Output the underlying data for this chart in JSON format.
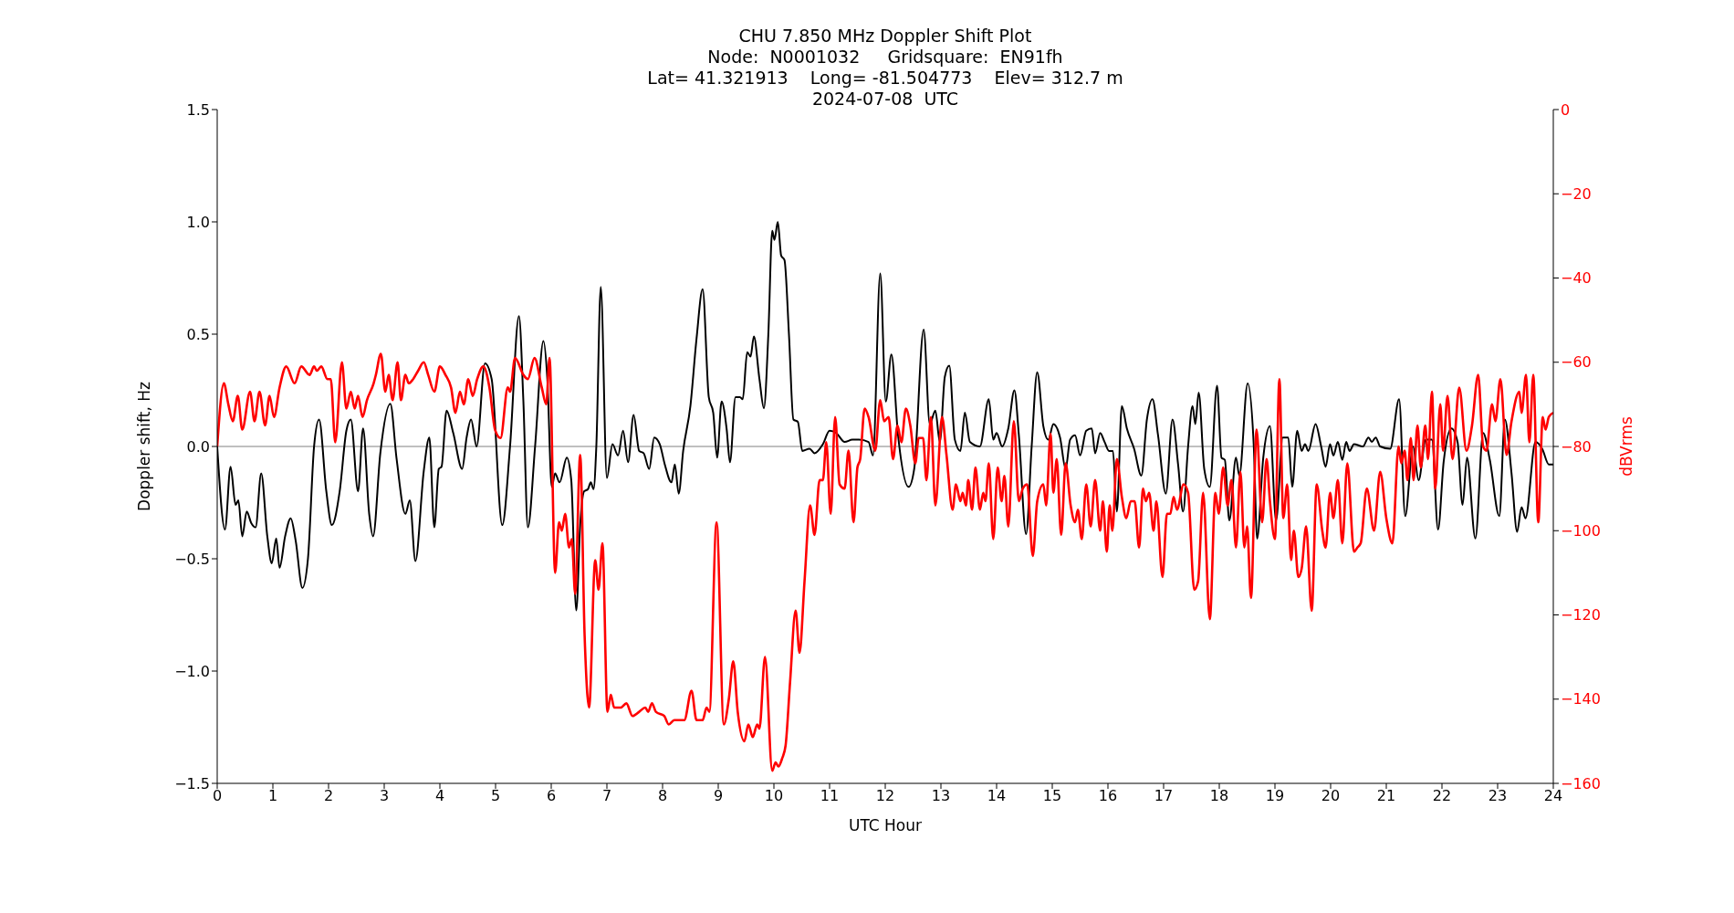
{
  "chart_data": {
    "type": "line",
    "title": "CHU 7.850 MHz Doppler Shift Plot",
    "subtitle": "Node:  N0001032     Gridsquare:  EN91fh\nLat= 41.321913    Long= -81.504773    Elev= 312.7 m\n2024-07-08  UTC",
    "xlabel": "UTC Hour",
    "ylabel": "Doppler shift, Hz",
    "y2label": "dBVrms",
    "xlim": [
      0,
      24
    ],
    "xticks": [
      0,
      1,
      2,
      3,
      4,
      5,
      6,
      7,
      8,
      9,
      10,
      11,
      12,
      13,
      14,
      15,
      16,
      17,
      18,
      19,
      20,
      21,
      22,
      23,
      24
    ],
    "ylim": [
      -1.5,
      1.5
    ],
    "yticks": [
      {
        "value": -1.5,
        "label": "−1.5"
      },
      {
        "value": -1.0,
        "label": "−1.0"
      },
      {
        "value": -0.5,
        "label": "−0.5"
      },
      {
        "value": 0,
        "label": "0.0"
      },
      {
        "value": 0.5,
        "label": "0.5"
      },
      {
        "value": 1.0,
        "label": "1.0"
      },
      {
        "value": 1.5,
        "label": "1.5"
      }
    ],
    "y2lim": [
      -160,
      0
    ],
    "y2ticks": [
      {
        "value": -160,
        "label": "−160"
      },
      {
        "value": -140,
        "label": "−140"
      },
      {
        "value": -120,
        "label": "−120"
      },
      {
        "value": -100,
        "label": "−100"
      },
      {
        "value": -80,
        "label": "−80"
      },
      {
        "value": -60,
        "label": "−60"
      },
      {
        "value": -40,
        "label": "−40"
      },
      {
        "value": -20,
        "label": "−20"
      },
      {
        "value": 0,
        "label": "0"
      }
    ],
    "ref_lines": [
      {
        "axis": "y",
        "value": 0,
        "color": "#808080"
      }
    ],
    "series": [
      {
        "color": "#000000",
        "x": [
          0,
          0.14,
          0.24,
          0.33,
          0.38,
          0.45,
          0.53,
          0.61,
          0.69,
          0.79,
          0.9,
          0.98,
          1.06,
          1.12,
          1.22,
          1.32,
          1.41,
          1.53,
          1.63,
          1.74,
          1.83,
          1.96,
          2.06,
          2.2,
          2.32,
          2.4,
          2.53,
          2.62,
          2.73,
          2.8,
          2.93,
          3.11,
          3.22,
          3.38,
          3.46,
          3.56,
          3.71,
          3.81,
          3.9,
          3.98,
          4.03,
          4.12,
          4.24,
          4.4,
          4.48,
          4.56,
          4.66,
          4.81,
          4.93,
          5.12,
          5.26,
          5.42,
          5.5,
          5.58,
          5.71,
          5.86,
          5.93,
          6.01,
          6.07,
          6.15,
          6.28,
          6.36,
          6.45,
          6.52,
          6.59,
          6.66,
          6.71,
          6.76,
          6.81,
          6.89,
          7.0,
          7.1,
          7.2,
          7.29,
          7.38,
          7.48,
          7.58,
          7.66,
          7.76,
          7.85,
          7.95,
          8.04,
          8.16,
          8.22,
          8.29,
          8.37,
          8.5,
          8.61,
          8.72,
          8.83,
          8.91,
          8.98,
          9.06,
          9.15,
          9.21,
          9.31,
          9.39,
          9.44,
          9.52,
          9.58,
          9.64,
          9.74,
          9.82,
          9.9,
          9.97,
          10.01,
          10.07,
          10.13,
          10.19,
          10.27,
          10.35,
          10.43,
          10.51,
          10.64,
          10.73,
          10.88,
          11.0,
          11.12,
          11.27,
          11.41,
          11.53,
          11.7,
          11.78,
          11.91,
          12.01,
          12.11,
          12.23,
          12.42,
          12.52,
          12.69,
          12.8,
          12.9,
          12.98,
          13.07,
          13.15,
          13.25,
          13.35,
          13.43,
          13.52,
          13.7,
          13.86,
          13.94,
          14.0,
          14.1,
          14.21,
          14.32,
          14.4,
          14.53,
          14.63,
          14.73,
          14.84,
          14.93,
          15.02,
          15.14,
          15.24,
          15.32,
          15.41,
          15.5,
          15.61,
          15.71,
          15.77,
          15.86,
          15.94,
          16.02,
          16.09,
          16.16,
          16.25,
          16.34,
          16.47,
          16.6,
          16.7,
          16.8,
          16.9,
          17.04,
          17.16,
          17.26,
          17.35,
          17.44,
          17.52,
          17.57,
          17.63,
          17.73,
          17.83,
          17.96,
          18.04,
          18.1,
          18.18,
          18.3,
          18.36,
          18.51,
          18.62,
          18.68,
          18.79,
          18.91,
          19.02,
          19.14,
          19.24,
          19.31,
          19.4,
          19.48,
          19.54,
          19.6,
          19.73,
          19.83,
          19.91,
          19.99,
          20.05,
          20.13,
          20.21,
          20.28,
          20.34,
          20.42,
          20.58,
          20.68,
          20.74,
          20.81,
          20.89,
          21.07,
          21.23,
          21.34,
          21.48,
          21.58,
          21.71,
          21.82,
          21.93,
          22.03,
          22.17,
          22.28,
          22.37,
          22.45,
          22.6,
          22.74,
          22.86,
          23.03,
          23.13,
          23.25,
          23.35,
          23.43,
          23.5,
          23.68,
          23.8,
          23.92,
          24.0
        ],
        "values": [
          0,
          -0.37,
          -0.09,
          -0.26,
          -0.24,
          -0.4,
          -0.29,
          -0.34,
          -0.36,
          -0.12,
          -0.4,
          -0.52,
          -0.41,
          -0.54,
          -0.4,
          -0.32,
          -0.42,
          -0.63,
          -0.5,
          0.0,
          0.12,
          -0.2,
          -0.35,
          -0.2,
          0.07,
          0.12,
          -0.2,
          0.08,
          -0.3,
          -0.4,
          -0.03,
          0.19,
          -0.05,
          -0.3,
          -0.24,
          -0.51,
          -0.11,
          0.04,
          -0.36,
          -0.1,
          -0.09,
          0.16,
          0.06,
          -0.1,
          0.04,
          0.12,
          0.0,
          0.37,
          0.3,
          -0.35,
          0.0,
          0.58,
          0.2,
          -0.36,
          0.0,
          0.47,
          0.3,
          -0.18,
          -0.12,
          -0.16,
          -0.05,
          -0.15,
          -0.73,
          -0.35,
          -0.2,
          -0.19,
          -0.16,
          -0.19,
          0.0,
          0.71,
          -0.14,
          0.01,
          -0.04,
          0.07,
          -0.07,
          0.14,
          -0.02,
          -0.03,
          -0.1,
          0.04,
          0.01,
          -0.08,
          -0.16,
          -0.08,
          -0.21,
          -0.02,
          0.18,
          0.48,
          0.7,
          0.22,
          0.15,
          -0.05,
          0.2,
          0.08,
          -0.07,
          0.22,
          0.22,
          0.21,
          0.42,
          0.4,
          0.49,
          0.3,
          0.17,
          0.5,
          0.96,
          0.92,
          1.0,
          0.85,
          0.83,
          0.5,
          0.12,
          0.11,
          -0.02,
          -0.01,
          -0.03,
          0.01,
          0.07,
          0.06,
          0.02,
          0.03,
          0.03,
          0.02,
          -0.04,
          0.77,
          0.2,
          0.41,
          0.05,
          -0.18,
          -0.1,
          0.52,
          0.1,
          0.16,
          0.02,
          0.31,
          0.36,
          0.03,
          -0.02,
          0.15,
          0.02,
          0.0,
          0.21,
          0.03,
          0.06,
          0.0,
          0.08,
          0.25,
          0.05,
          -0.39,
          0.0,
          0.33,
          0.09,
          0.03,
          0.1,
          0.04,
          -0.1,
          0.03,
          0.05,
          -0.04,
          0.07,
          0.08,
          -0.03,
          0.06,
          0.02,
          -0.02,
          -0.02,
          -0.29,
          0.18,
          0.08,
          -0.01,
          -0.13,
          0.12,
          0.21,
          0.05,
          -0.21,
          0.12,
          -0.08,
          -0.29,
          0.0,
          0.18,
          0.1,
          0.24,
          -0.1,
          -0.18,
          0.27,
          -0.05,
          -0.06,
          -0.33,
          -0.05,
          -0.13,
          0.28,
          0.0,
          -0.41,
          -0.05,
          0.09,
          -0.33,
          0.04,
          0.04,
          -0.18,
          0.07,
          -0.02,
          0.01,
          -0.02,
          0.1,
          0.0,
          -0.09,
          0.01,
          -0.04,
          0.02,
          -0.06,
          0.02,
          -0.02,
          0.01,
          0.0,
          0.04,
          0.02,
          0.04,
          0.0,
          -0.01,
          0.21,
          -0.31,
          0.0,
          -0.15,
          0.03,
          0.03,
          -0.37,
          -0.07,
          0.08,
          0.02,
          -0.26,
          -0.05,
          -0.41,
          0.06,
          -0.06,
          -0.31,
          0.12,
          -0.12,
          -0.38,
          -0.27,
          -0.32,
          0.02,
          -0.01,
          -0.08,
          -0.08
        ]
      },
      {
        "color": "#ff0000",
        "axis": "y2",
        "x": [
          0,
          0.12,
          0.2,
          0.28,
          0.37,
          0.45,
          0.59,
          0.67,
          0.76,
          0.86,
          0.94,
          1.02,
          1.12,
          1.24,
          1.39,
          1.51,
          1.66,
          1.74,
          1.79,
          1.87,
          1.98,
          2.04,
          2.12,
          2.24,
          2.32,
          2.4,
          2.47,
          2.53,
          2.61,
          2.69,
          2.81,
          2.85,
          2.94,
          3.02,
          3.08,
          3.15,
          3.24,
          3.3,
          3.38,
          3.44,
          3.52,
          3.61,
          3.71,
          3.79,
          3.9,
          4.0,
          4.1,
          4.2,
          4.28,
          4.36,
          4.43,
          4.51,
          4.59,
          4.67,
          4.78,
          4.89,
          4.99,
          5.09,
          5.22,
          5.26,
          5.35,
          5.5,
          5.58,
          5.7,
          5.83,
          5.91,
          5.97,
          6.07,
          6.14,
          6.19,
          6.25,
          6.32,
          6.37,
          6.43,
          6.52,
          6.6,
          6.68,
          6.79,
          6.85,
          6.92,
          7.01,
          7.07,
          7.13,
          7.25,
          7.35,
          7.46,
          7.58,
          7.69,
          7.74,
          7.81,
          7.88,
          8.03,
          8.11,
          8.21,
          8.31,
          8.39,
          8.52,
          8.61,
          8.72,
          8.79,
          8.84,
          8.97,
          9.1,
          9.19,
          9.27,
          9.35,
          9.47,
          9.54,
          9.62,
          9.7,
          9.74,
          9.84,
          9.97,
          10.03,
          10.08,
          10.15,
          10.21,
          10.29,
          10.39,
          10.46,
          10.55,
          10.65,
          10.73,
          10.82,
          10.88,
          10.94,
          11.02,
          11.1,
          11.18,
          11.27,
          11.34,
          11.43,
          11.5,
          11.55,
          11.63,
          11.7,
          11.82,
          11.91,
          11.98,
          12.06,
          12.14,
          12.22,
          12.29,
          12.37,
          12.45,
          12.54,
          12.6,
          12.68,
          12.74,
          12.82,
          12.9,
          13.02,
          13.1,
          13.21,
          13.27,
          13.35,
          13.39,
          13.45,
          13.49,
          13.56,
          13.62,
          13.7,
          13.76,
          13.8,
          13.86,
          13.94,
          14.02,
          14.09,
          14.14,
          14.21,
          14.31,
          14.4,
          14.47,
          14.55,
          14.65,
          14.73,
          14.84,
          14.89,
          14.97,
          15.02,
          15.08,
          15.16,
          15.24,
          15.33,
          15.41,
          15.46,
          15.53,
          15.61,
          15.69,
          15.77,
          15.86,
          15.91,
          15.98,
          16.03,
          16.08,
          16.16,
          16.25,
          16.33,
          16.41,
          16.48,
          16.56,
          16.63,
          16.68,
          16.74,
          16.82,
          16.87,
          16.98,
          17.06,
          17.12,
          17.18,
          17.24,
          17.36,
          17.44,
          17.55,
          17.62,
          17.71,
          17.83,
          17.93,
          17.99,
          18.07,
          18.15,
          18.22,
          18.3,
          18.38,
          18.45,
          18.5,
          18.57,
          18.67,
          18.77,
          18.85,
          18.91,
          19.0,
          19.08,
          19.15,
          19.22,
          19.29,
          19.34,
          19.42,
          19.48,
          19.56,
          19.66,
          19.75,
          19.85,
          19.91,
          19.99,
          20.05,
          20.13,
          20.21,
          20.3,
          20.42,
          20.48,
          20.54,
          20.65,
          20.78,
          20.89,
          21.0,
          21.11,
          21.22,
          21.27,
          21.33,
          21.38,
          21.44,
          21.49,
          21.56,
          21.62,
          21.7,
          21.75,
          21.82,
          21.88,
          21.97,
          22.02,
          22.1,
          22.19,
          22.31,
          22.44,
          22.54,
          22.65,
          22.74,
          22.8,
          22.9,
          22.96,
          23.05,
          23.16,
          23.25,
          23.39,
          23.43,
          23.51,
          23.57,
          23.64,
          23.73,
          23.81,
          23.86,
          23.92,
          24.0
        ],
        "values": [
          -80,
          -65,
          -70,
          -74,
          -68,
          -76,
          -67,
          -74,
          -67,
          -75,
          -68,
          -73,
          -66,
          -61,
          -65,
          -61,
          -63,
          -61,
          -62,
          -61,
          -64,
          -64,
          -79,
          -60,
          -71,
          -67,
          -71,
          -68,
          -73,
          -69,
          -65,
          -63,
          -58,
          -67,
          -63,
          -69,
          -60,
          -69,
          -63,
          -65,
          -64,
          -62,
          -60,
          -63,
          -67,
          -61,
          -63,
          -66,
          -72,
          -67,
          -70,
          -64,
          -68,
          -64,
          -61,
          -66,
          -76,
          -78,
          -66,
          -67,
          -59,
          -63,
          -64,
          -59,
          -66,
          -70,
          -59,
          -110,
          -98,
          -100,
          -96,
          -104,
          -102,
          -115,
          -82,
          -125,
          -142,
          -107,
          -114,
          -103,
          -143,
          -139,
          -142,
          -142,
          -141,
          -144,
          -143,
          -142,
          -143,
          -141,
          -143,
          -144,
          -146,
          -145,
          -145,
          -145,
          -138,
          -145,
          -145,
          -142,
          -143,
          -98,
          -146,
          -140,
          -131,
          -143,
          -150,
          -146,
          -149,
          -146,
          -147,
          -130,
          -157,
          -155,
          -156,
          -154,
          -151,
          -136,
          -119,
          -129,
          -112,
          -94,
          -101,
          -88,
          -88,
          -79,
          -96,
          -73,
          -89,
          -90,
          -81,
          -98,
          -85,
          -83,
          -71,
          -73,
          -81,
          -69,
          -74,
          -73,
          -83,
          -75,
          -79,
          -71,
          -75,
          -84,
          -78,
          -78,
          -88,
          -73,
          -94,
          -73,
          -82,
          -95,
          -89,
          -93,
          -91,
          -94,
          -88,
          -95,
          -85,
          -95,
          -91,
          -93,
          -84,
          -102,
          -85,
          -93,
          -87,
          -99,
          -74,
          -93,
          -90,
          -89,
          -106,
          -93,
          -89,
          -94,
          -77,
          -91,
          -83,
          -101,
          -84,
          -94,
          -98,
          -95,
          -102,
          -89,
          -99,
          -88,
          -100,
          -93,
          -105,
          -94,
          -100,
          -83,
          -92,
          -97,
          -93,
          -93,
          -104,
          -90,
          -93,
          -91,
          -100,
          -93,
          -111,
          -96,
          -96,
          -92,
          -95,
          -89,
          -91,
          -114,
          -112,
          -91,
          -121,
          -91,
          -96,
          -85,
          -94,
          -88,
          -104,
          -86,
          -104,
          -99,
          -116,
          -76,
          -98,
          -83,
          -93,
          -102,
          -64,
          -97,
          -89,
          -107,
          -100,
          -111,
          -109,
          -99,
          -119,
          -89,
          -100,
          -104,
          -91,
          -97,
          -88,
          -103,
          -84,
          -105,
          -104,
          -103,
          -90,
          -100,
          -86,
          -97,
          -103,
          -80,
          -84,
          -81,
          -88,
          -78,
          -88,
          -75,
          -85,
          -75,
          -83,
          -67,
          -90,
          -70,
          -81,
          -68,
          -83,
          -66,
          -81,
          -75,
          -63,
          -80,
          -81,
          -70,
          -74,
          -64,
          -82,
          -74,
          -67,
          -72,
          -63,
          -79,
          -63,
          -98,
          -73,
          -76,
          -73,
          -72
        ]
      }
    ]
  }
}
